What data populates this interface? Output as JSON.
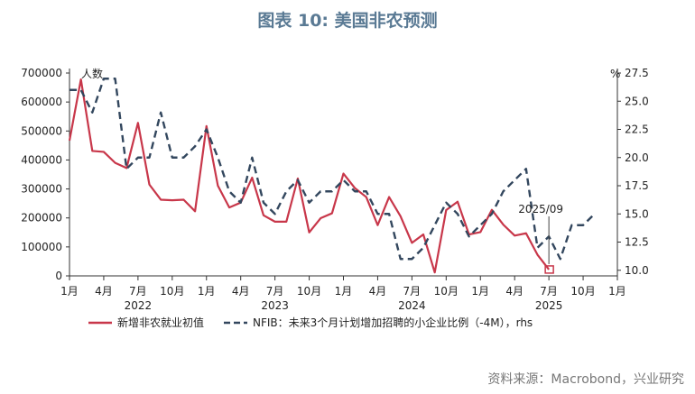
{
  "chart_data": {
    "type": "line",
    "title": "图表 10: 美国非农预测",
    "left_axis_label": "人数",
    "right_axis_label": "%",
    "left_ylim": [
      0,
      700000
    ],
    "left_ticks": [
      0,
      100000,
      200000,
      300000,
      400000,
      500000,
      600000,
      700000
    ],
    "right_ylim": [
      9.5,
      27.5
    ],
    "right_ticks": [
      10.0,
      12.5,
      15.0,
      17.5,
      20.0,
      22.5,
      25.0,
      27.5
    ],
    "x_month_ticks": [
      "1月",
      "4月",
      "7月",
      "10月",
      "1月",
      "4月",
      "7月",
      "10月",
      "1月",
      "4月",
      "7月",
      "10月",
      "1月",
      "4月",
      "7月",
      "10月",
      "1月"
    ],
    "x_year_labels": [
      "2022",
      "2023",
      "2024",
      "2025"
    ],
    "annotation": "2025/09",
    "series": [
      {
        "name": "新增非农就业初值",
        "color": "#c8374a",
        "axis": "left",
        "values": [
          467000,
          678000,
          431000,
          428000,
          390000,
          372000,
          528000,
          315000,
          263000,
          261000,
          263000,
          223000,
          517000,
          311000,
          236000,
          253000,
          339000,
          209000,
          187000,
          187000,
          336000,
          150000,
          199000,
          216000,
          353000,
          303000,
          272000,
          175000,
          272000,
          206000,
          114000,
          143000,
          12000,
          227000,
          256000,
          143000,
          151000,
          228000,
          177000,
          139000,
          147000,
          73000,
          22000
        ]
      },
      {
        "name": "NFIB：未来3个月计划增加招聘的小企业比例（-4M），rhs",
        "color": "#33475e",
        "axis": "right",
        "values": [
          26,
          26,
          24,
          27,
          27,
          19,
          20,
          20,
          24,
          20,
          20,
          21,
          22.5,
          20,
          17,
          16,
          20,
          16,
          15,
          17,
          18,
          16,
          17,
          17,
          18,
          17,
          17,
          15,
          15,
          11,
          11,
          12,
          14,
          16,
          15,
          13,
          14,
          15,
          17,
          18,
          19,
          12,
          13,
          11,
          14,
          14,
          15
        ]
      }
    ],
    "legend": [
      "新增非农就业初值",
      "NFIB：未来3个月计划增加招聘的小企业比例（-4M），rhs"
    ],
    "source": "资料来源：Macrobond，兴业研究"
  }
}
